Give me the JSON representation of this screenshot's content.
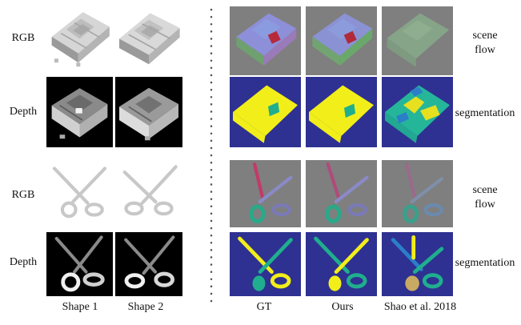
{
  "rows": {
    "house_rgb": "RGB",
    "house_depth": "Depth",
    "scissors_rgb": "RGB",
    "scissors_depth": "Depth"
  },
  "side_labels": {
    "house_flow_line1": "scene",
    "house_flow_line2": "flow",
    "house_seg": "segmentation",
    "scissors_flow_line1": "scene",
    "scissors_flow_line2": "flow",
    "scissors_seg": "segmentation"
  },
  "columns": {
    "shape1": "Shape 1",
    "shape2": "Shape 2",
    "gt": "GT",
    "ours": "Ours",
    "baseline": "Shao et al. 2018"
  },
  "colors": {
    "seg_background": "#2e3191",
    "seg_yellow": "#f2ee1a",
    "seg_teal": "#1fae8e",
    "seg_blue": "#2a7fc8",
    "seg_tan": "#c8aa62",
    "flow_gray": "#7f7f7f",
    "depth_black": "#000000"
  }
}
